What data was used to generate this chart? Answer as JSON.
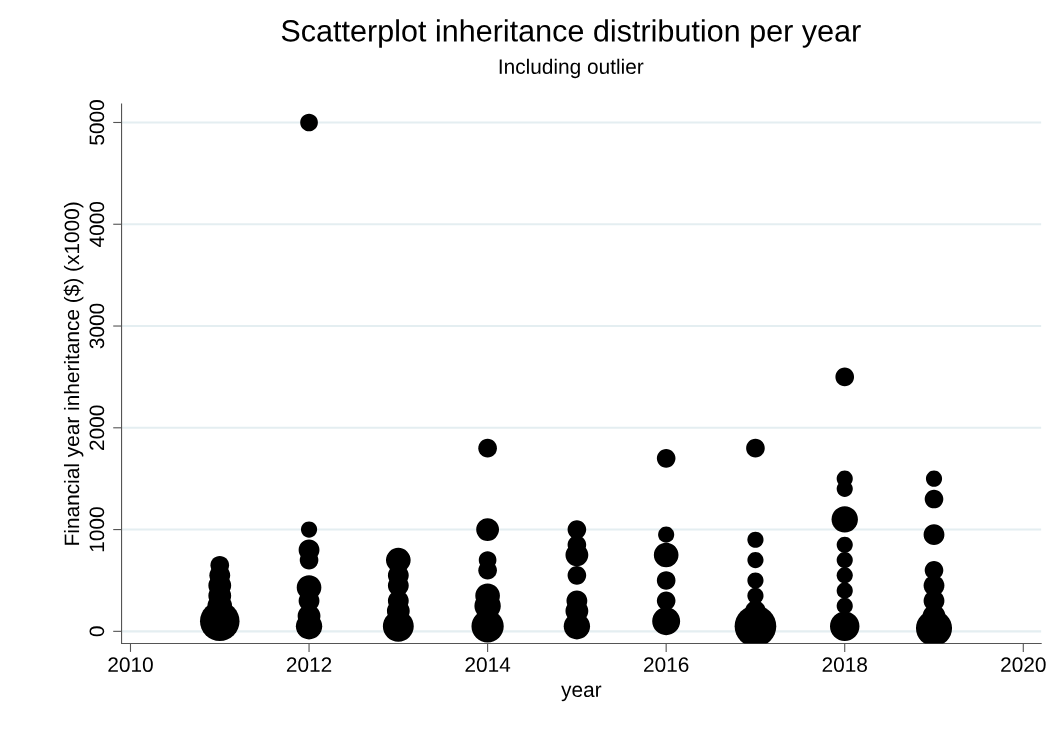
{
  "chart_data": {
    "type": "bubble",
    "title": "Scatterplot inheritance distribution per year",
    "subtitle": "Including outlier",
    "xlabel": "year",
    "ylabel": "Financial year inheritance ($) (x1000)",
    "xlim": [
      2009.9,
      2020.2
    ],
    "xticks": [
      2010,
      2012,
      2014,
      2016,
      2018,
      2020
    ],
    "ylim": [
      -120,
      5180
    ],
    "yticks": [
      0,
      1000,
      2000,
      3000,
      4000,
      5000
    ],
    "grid": "y",
    "marker": "circle",
    "legend": false,
    "series": [
      {
        "color": "#000000",
        "x": [
          2011,
          2011,
          2011,
          2011,
          2011,
          2011,
          2012,
          2012,
          2012,
          2012,
          2012,
          2012,
          2012,
          2012,
          2013,
          2013,
          2013,
          2013,
          2013,
          2013,
          2014,
          2014,
          2014,
          2014,
          2014,
          2014,
          2014,
          2015,
          2015,
          2015,
          2015,
          2015,
          2015,
          2015,
          2016,
          2016,
          2016,
          2016,
          2016,
          2016,
          2017,
          2017,
          2017,
          2017,
          2017,
          2017,
          2017,
          2018,
          2018,
          2018,
          2018,
          2018,
          2018,
          2018,
          2018,
          2018,
          2018,
          2019,
          2019,
          2019,
          2019,
          2019,
          2019,
          2019,
          2019
        ],
        "values": [
          100,
          250,
          350,
          450,
          550,
          650,
          5000,
          1000,
          800,
          700,
          430,
          300,
          150,
          50,
          50,
          200,
          300,
          450,
          550,
          700,
          1800,
          1000,
          700,
          600,
          350,
          250,
          50,
          1000,
          850,
          750,
          550,
          300,
          200,
          50,
          1700,
          950,
          750,
          500,
          300,
          100,
          1800,
          900,
          700,
          500,
          350,
          200,
          50,
          2500,
          1500,
          1400,
          1100,
          850,
          700,
          550,
          400,
          250,
          50,
          1500,
          1300,
          950,
          600,
          450,
          300,
          150,
          30
        ],
        "sizes": [
          0.9,
          0.35,
          0.3,
          0.3,
          0.25,
          0.2,
          0.18,
          0.15,
          0.25,
          0.2,
          0.35,
          0.25,
          0.3,
          0.4,
          0.55,
          0.3,
          0.25,
          0.25,
          0.25,
          0.35,
          0.2,
          0.3,
          0.18,
          0.2,
          0.35,
          0.4,
          0.6,
          0.2,
          0.2,
          0.3,
          0.2,
          0.25,
          0.3,
          0.4,
          0.2,
          0.15,
          0.35,
          0.2,
          0.2,
          0.45,
          0.2,
          0.15,
          0.15,
          0.15,
          0.15,
          0.25,
          1,
          0.2,
          0.15,
          0.15,
          0.4,
          0.15,
          0.15,
          0.15,
          0.15,
          0.15,
          0.5,
          0.15,
          0.2,
          0.25,
          0.2,
          0.25,
          0.25,
          0.3,
          0.75
        ]
      }
    ]
  }
}
